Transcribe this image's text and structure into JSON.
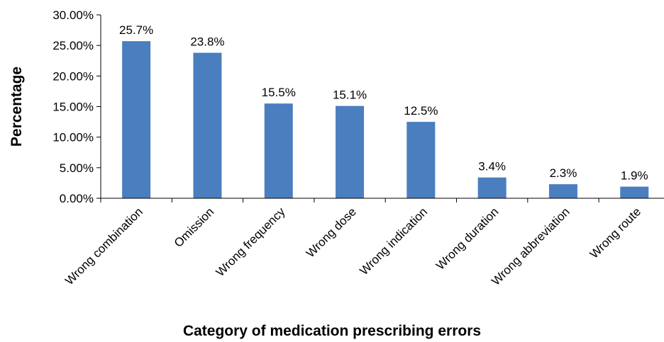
{
  "chart_data": {
    "type": "bar",
    "title": "",
    "xlabel": "Category of medication prescribing errors",
    "ylabel": "Percentage",
    "categories": [
      "Wrong combination",
      "Omission",
      "Wrong frequency",
      "Wrong dose",
      "Wrong indication",
      "Wrong duration",
      "Wrong abbreviation",
      "Wrong route"
    ],
    "values": [
      25.7,
      23.8,
      15.5,
      15.1,
      12.5,
      3.4,
      2.3,
      1.9
    ],
    "data_labels": [
      "25.7%",
      "23.8%",
      "15.5%",
      "15.1%",
      "12.5%",
      "3.4%",
      "2.3%",
      "1.9%"
    ],
    "ylim": [
      0,
      30
    ],
    "yticks": [
      0,
      5,
      10,
      15,
      20,
      25,
      30
    ],
    "ytick_labels": [
      "0.00%",
      "5.00%",
      "10.00%",
      "15.00%",
      "20.00%",
      "25.00%",
      "30.00%"
    ],
    "grid": false,
    "legend": "none",
    "bar_color": "#4a7ebf"
  }
}
